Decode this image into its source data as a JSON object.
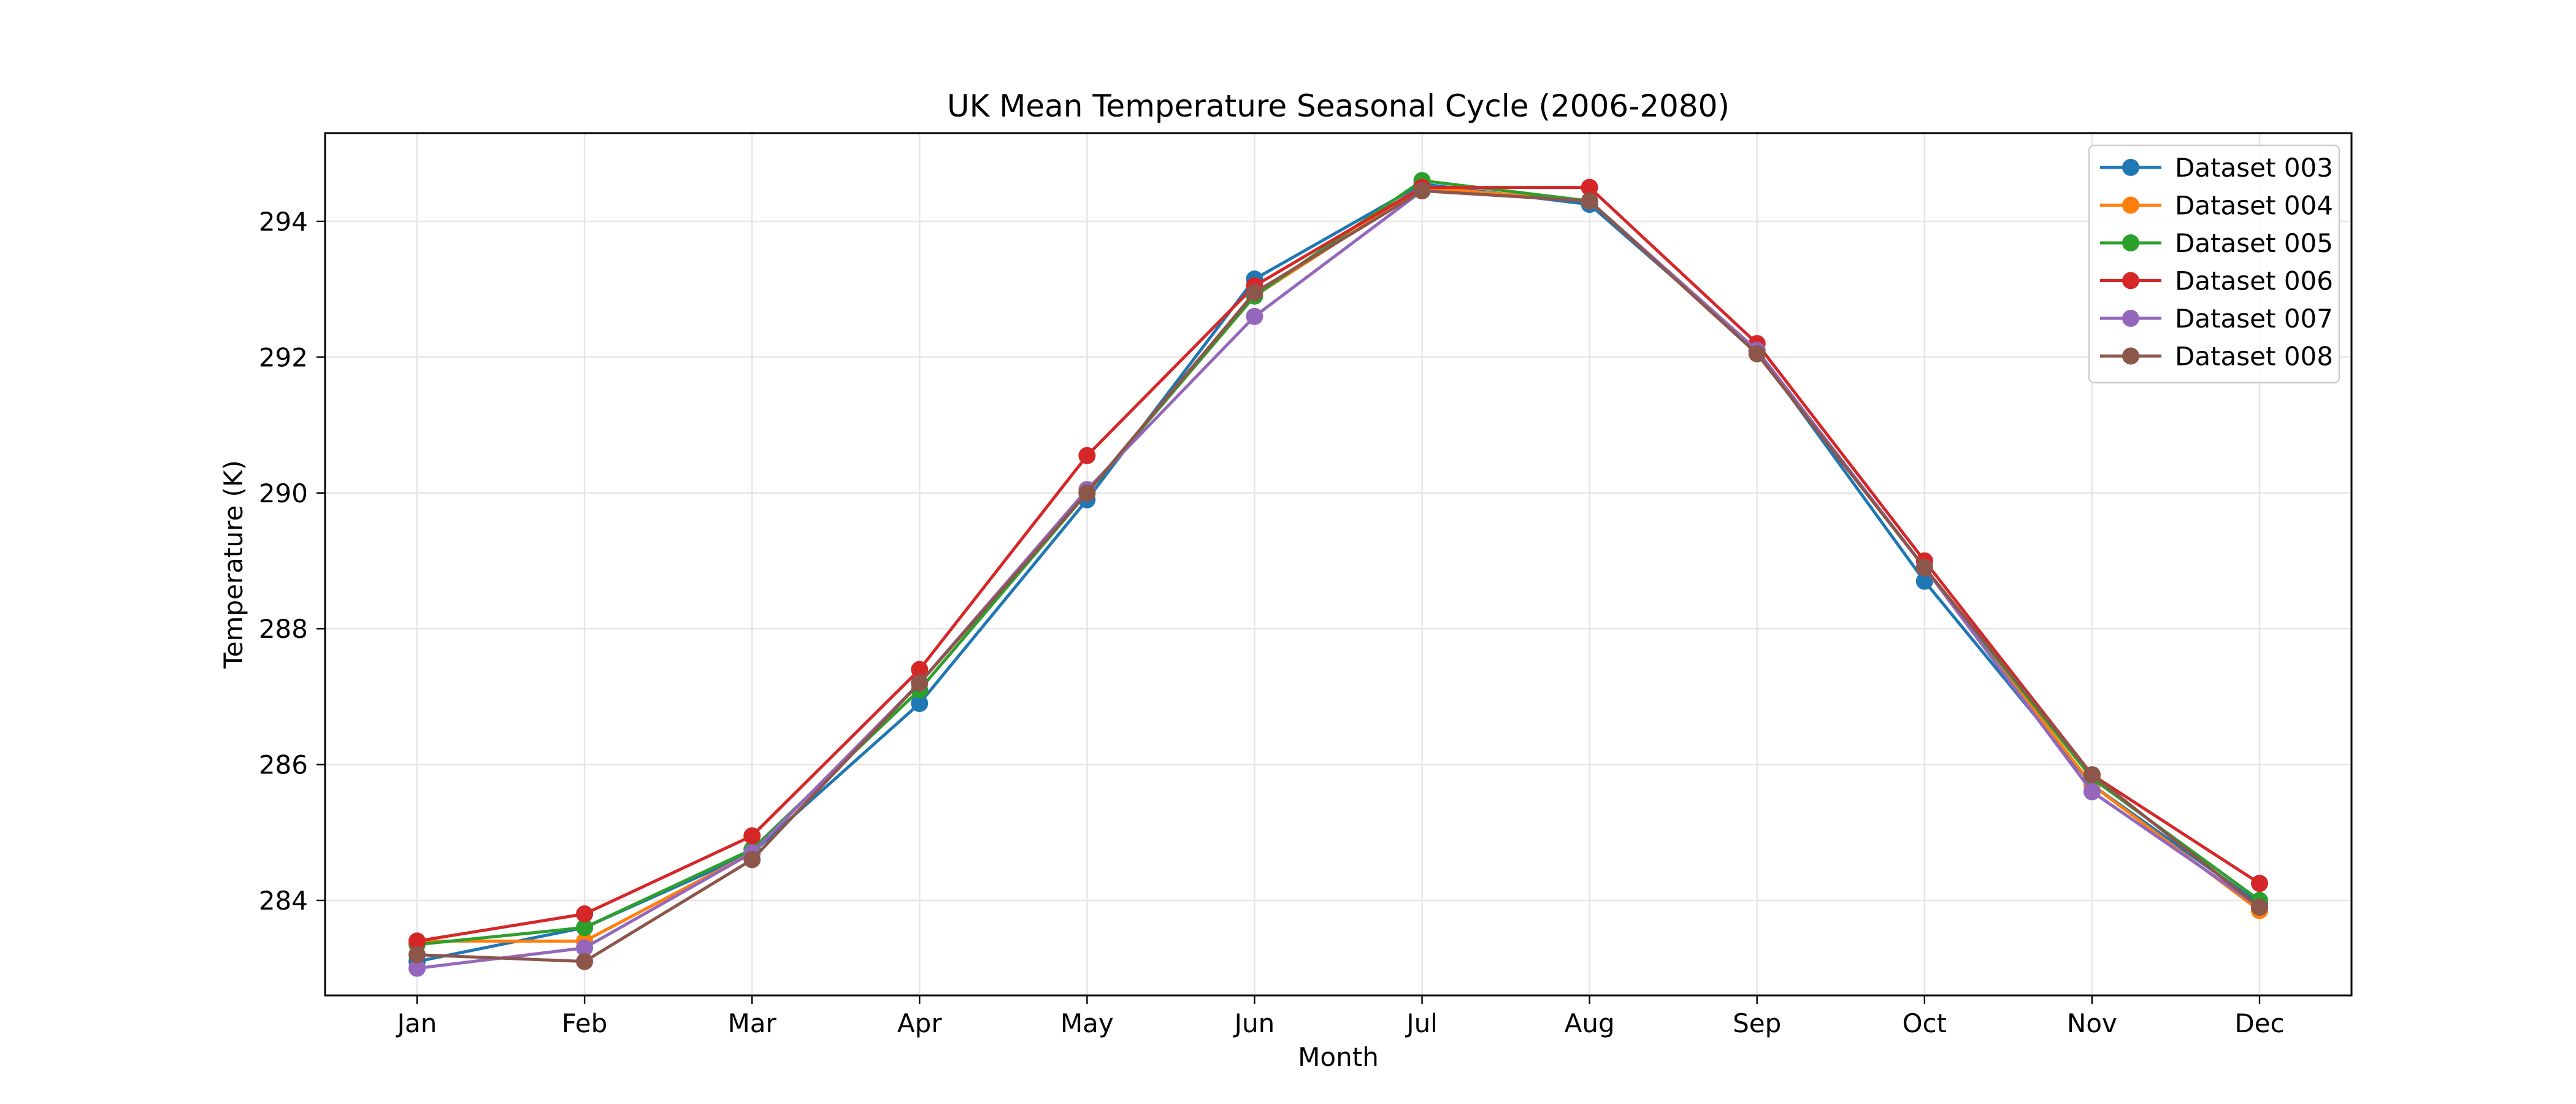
{
  "chart_data": {
    "type": "line",
    "title": "UK Mean Temperature Seasonal Cycle (2006-2080)",
    "xlabel": "Month",
    "ylabel": "Temperature (K)",
    "categories": [
      "Jan",
      "Feb",
      "Mar",
      "Apr",
      "May",
      "Jun",
      "Jul",
      "Aug",
      "Sep",
      "Oct",
      "Nov",
      "Dec"
    ],
    "ylim": [
      282.6,
      295.3
    ],
    "yticks": [
      284,
      286,
      288,
      290,
      292,
      294
    ],
    "grid": true,
    "legend_position": "top-right",
    "marker": "circle",
    "series": [
      {
        "name": "Dataset 003",
        "color": "#1f77b4",
        "values": [
          283.1,
          283.6,
          284.7,
          286.9,
          289.9,
          293.15,
          294.55,
          294.25,
          292.1,
          288.7,
          285.7,
          283.95
        ]
      },
      {
        "name": "Dataset 004",
        "color": "#ff7f0e",
        "values": [
          283.4,
          283.4,
          284.7,
          287.2,
          290.0,
          292.9,
          294.5,
          294.3,
          292.1,
          288.9,
          285.7,
          283.85
        ]
      },
      {
        "name": "Dataset 005",
        "color": "#2ca02c",
        "values": [
          283.35,
          283.6,
          284.75,
          287.1,
          290.0,
          292.9,
          294.6,
          294.3,
          292.1,
          288.9,
          285.8,
          284.0
        ]
      },
      {
        "name": "Dataset 006",
        "color": "#d62728",
        "values": [
          283.4,
          283.8,
          284.95,
          287.4,
          290.55,
          293.05,
          294.5,
          294.5,
          292.2,
          289.0,
          285.85,
          284.25
        ]
      },
      {
        "name": "Dataset 007",
        "color": "#9467bd",
        "values": [
          283.0,
          283.3,
          284.7,
          287.2,
          290.05,
          292.6,
          294.45,
          294.3,
          292.1,
          288.9,
          285.6,
          283.9
        ]
      },
      {
        "name": "Dataset 008",
        "color": "#8c564b",
        "values": [
          283.2,
          283.1,
          284.6,
          287.2,
          290.0,
          292.95,
          294.45,
          294.3,
          292.05,
          288.9,
          285.85,
          283.9
        ]
      }
    ]
  }
}
